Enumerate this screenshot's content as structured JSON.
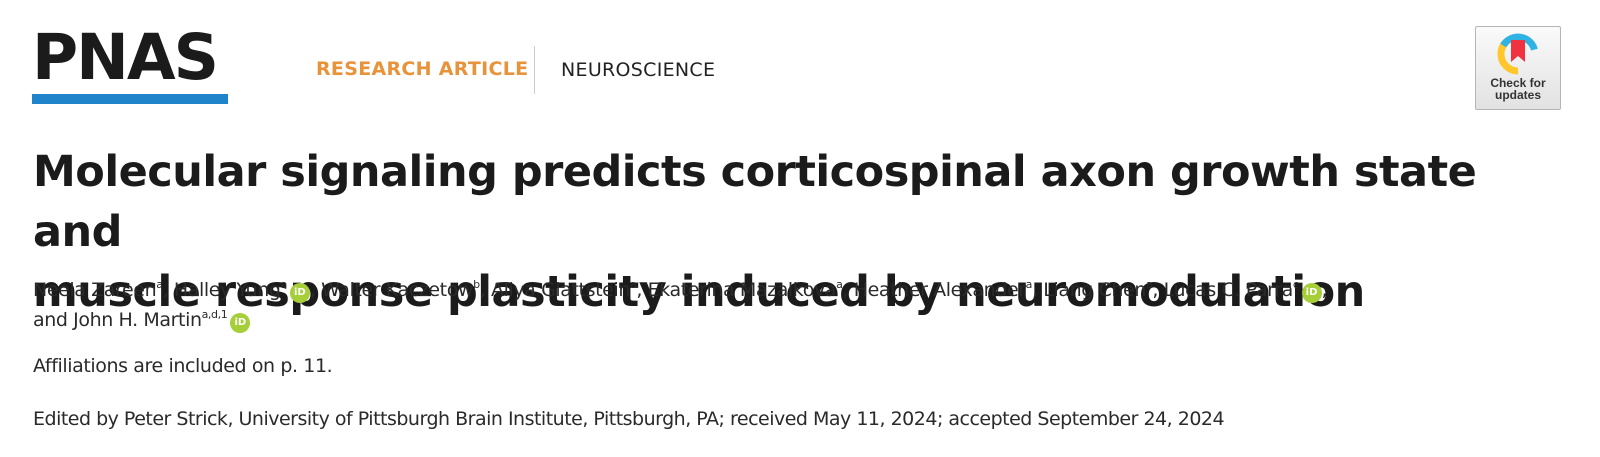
{
  "header": {
    "logo_text": "PNAS",
    "article_type": "RESEARCH ARTICLE",
    "subject": "NEUROSCIENCE",
    "check_updates_label": "Check for updates"
  },
  "colors": {
    "logo_bar": "#1f84c9",
    "article_type": "#e8923a",
    "orcid": "#a6ce39"
  },
  "icons": {
    "orcid": "orcid-icon",
    "crossmark": "crossmark-icon"
  },
  "title": {
    "line1": "Molecular signaling predicts corticospinal axon growth state and",
    "line2": "muscle response plasticity induced by neuromodulation"
  },
  "authors": [
    {
      "name": "Neela Zareen",
      "aff": "a",
      "orcid": false,
      "sep": ", "
    },
    {
      "name": "Halley Yung",
      "aff": "a",
      "orcid": true,
      "orcid_label": "iD",
      "sep": ", "
    },
    {
      "name": "Walter Kaczetow",
      "aff": "b",
      "orcid": false,
      "sep": ", "
    },
    {
      "name": "Aliya Glattstein",
      "aff": "a",
      "orcid": false,
      "sep": ", "
    },
    {
      "name": "Ekaterina Mazalkova",
      "aff": "a",
      "orcid": false,
      "sep": ", "
    },
    {
      "name": "Heather Alexander",
      "aff": "a",
      "orcid": false,
      "sep": ", "
    },
    {
      "name": "Liang Chen",
      "aff": "a",
      "orcid": false,
      "sep": ", "
    },
    {
      "name": "Lucas C. Parra",
      "aff": "c",
      "orcid": true,
      "orcid_label": "iD",
      "sep": ","
    },
    {
      "name": "and John H. Martin",
      "aff": "a,d,1",
      "orcid": true,
      "orcid_label": "iD",
      "sep": ""
    }
  ],
  "affiliations_note": "Affiliations are included on p. 11.",
  "edited_by": "Edited by Peter Strick, University of Pittsburgh Brain Institute, Pittsburgh, PA; received May 11, 2024; accepted September 24, 2024"
}
